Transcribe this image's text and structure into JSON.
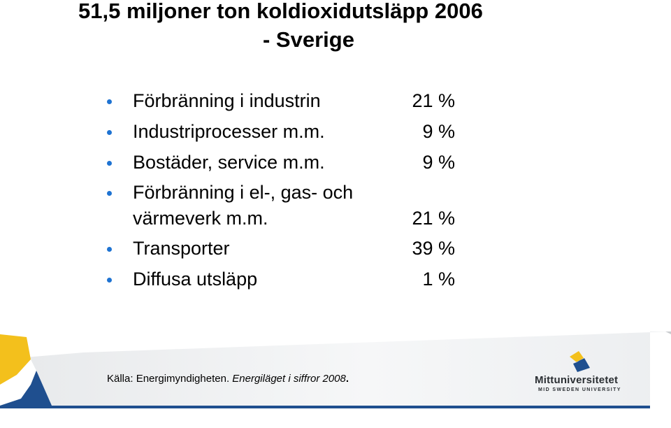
{
  "title": {
    "line1": "51,5 miljoner ton koldioxidutsläpp 2006",
    "line2": "- Sverige"
  },
  "items": [
    {
      "label": "Förbränning i industrin",
      "value": "21 %"
    },
    {
      "label": "Industriprocesser m.m.",
      "value": "9 %"
    },
    {
      "label": "Bostäder, service m.m.",
      "value": "9 %"
    },
    {
      "label_line1": "Förbränning i el-, gas- och",
      "label_line2": "värmeverk m.m.",
      "value": "21 %"
    },
    {
      "label": "Transporter",
      "value": "39 %"
    },
    {
      "label": "Diffusa utsläpp",
      "value": "1 %"
    }
  ],
  "source": {
    "prefix": "Källa: Energimyndigheten. ",
    "publication": "Energiläget i siffror 2008",
    "suffix": "."
  },
  "logo": {
    "name": "Mittuniversitetet",
    "subtitle": "MID SWEDEN UNIVERSITY"
  },
  "colors": {
    "bullet": "#1e73d2",
    "accent_yellow": "#f3c01c",
    "accent_blue": "#1f4f8f",
    "footer_gray": "#c9cccf"
  }
}
